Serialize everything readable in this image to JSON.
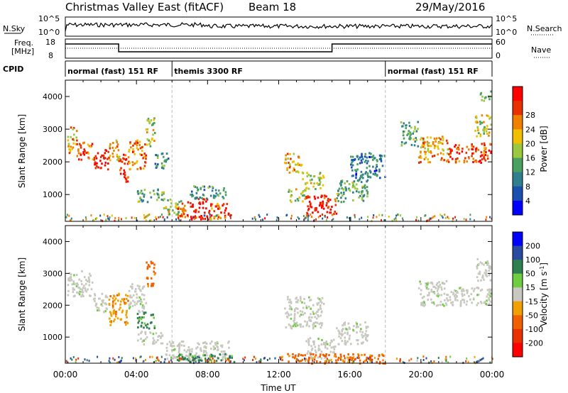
{
  "header": {
    "title": "Christmas Valley East (fitACF)",
    "beam": "Beam 18",
    "date": "29/May/2016"
  },
  "top_panels": {
    "nsky_label": "N.Sky",
    "nsky_ticks": [
      "10^5",
      "10^0"
    ],
    "nsearch_label": "N.Search",
    "nsearch_ticks": [
      "10^5",
      "10^0"
    ],
    "freq_label_1": "Freq.",
    "freq_label_2": "[MHz]",
    "freq_ticks": [
      "18",
      "8"
    ],
    "nave_label": "Nave",
    "nave_ticks": [
      "60",
      "0"
    ],
    "cpid_label": "CPID",
    "cpid_segments": [
      {
        "label": "normal (fast) 151 RF",
        "start_hour": 0,
        "end_hour": 6
      },
      {
        "label": "themis 3300 RF",
        "start_hour": 6,
        "end_hour": 18
      },
      {
        "label": "normal (fast) 151 RF",
        "start_hour": 18,
        "end_hour": 24
      }
    ]
  },
  "chart_data": [
    {
      "type": "heatmap",
      "name": "power",
      "ylabel": "Slant Range [km]",
      "yticks": [
        1000,
        2000,
        3000,
        4000
      ],
      "ylim": [
        180,
        4500
      ],
      "xlim": [
        0,
        24
      ],
      "colorbar_label": "Power [dB]",
      "colorbar_ticks": [
        4,
        8,
        12,
        16,
        20,
        24,
        28
      ],
      "colors": [
        "#0000ff",
        "#1a4fb0",
        "#2f7f8f",
        "#4aa060",
        "#9cc840",
        "#f0c000",
        "#f08000",
        "#e83000",
        "#ff0000"
      ],
      "echo_regions": [
        {
          "t0": 0.1,
          "t1": 0.6,
          "r0": 2300,
          "r1": 3100,
          "power": 20
        },
        {
          "t0": 0.6,
          "t1": 1.5,
          "r0": 2100,
          "r1": 2700,
          "power": 24
        },
        {
          "t0": 1.5,
          "t1": 2.4,
          "r0": 1800,
          "r1": 2400,
          "power": 28
        },
        {
          "t0": 2.4,
          "t1": 3.0,
          "r0": 2000,
          "r1": 2700,
          "power": 20
        },
        {
          "t0": 3.0,
          "t1": 3.5,
          "r0": 1400,
          "r1": 2300,
          "power": 26
        },
        {
          "t0": 3.5,
          "t1": 4.5,
          "r0": 1800,
          "r1": 2700,
          "power": 22
        },
        {
          "t0": 4.5,
          "t1": 5.0,
          "r0": 2500,
          "r1": 3400,
          "power": 16
        },
        {
          "t0": 5.0,
          "t1": 5.8,
          "r0": 1800,
          "r1": 2300,
          "power": 10
        },
        {
          "t0": 4.0,
          "t1": 5.5,
          "r0": 800,
          "r1": 1200,
          "power": 12
        },
        {
          "t0": 5.5,
          "t1": 6.5,
          "r0": 400,
          "r1": 900,
          "power": 16
        },
        {
          "t0": 6.2,
          "t1": 7.0,
          "r0": 300,
          "r1": 800,
          "power": 24
        },
        {
          "t0": 7.0,
          "t1": 8.0,
          "r0": 250,
          "r1": 900,
          "power": 28
        },
        {
          "t0": 8.0,
          "t1": 9.2,
          "r0": 300,
          "r1": 800,
          "power": 24
        },
        {
          "t0": 7.0,
          "t1": 9.0,
          "r0": 900,
          "r1": 1300,
          "power": 10
        },
        {
          "t0": 12.3,
          "t1": 13.3,
          "r0": 1700,
          "r1": 2300,
          "power": 20
        },
        {
          "t0": 13.3,
          "t1": 14.5,
          "r0": 1200,
          "r1": 1700,
          "power": 16
        },
        {
          "t0": 12.5,
          "t1": 13.5,
          "r0": 800,
          "r1": 1200,
          "power": 16
        },
        {
          "t0": 13.5,
          "t1": 15.2,
          "r0": 350,
          "r1": 1000,
          "power": 26
        },
        {
          "t0": 15.2,
          "t1": 17.0,
          "r0": 800,
          "r1": 1500,
          "power": 12
        },
        {
          "t0": 16.0,
          "t1": 18.0,
          "r0": 1500,
          "r1": 2300,
          "power": 8
        },
        {
          "t0": 18.8,
          "t1": 19.8,
          "r0": 2500,
          "r1": 3300,
          "power": 12
        },
        {
          "t0": 19.8,
          "t1": 21.5,
          "r0": 2000,
          "r1": 2800,
          "power": 20
        },
        {
          "t0": 21.5,
          "t1": 23.9,
          "r0": 2000,
          "r1": 2600,
          "power": 24
        },
        {
          "t0": 23.0,
          "t1": 23.9,
          "r0": 2800,
          "r1": 3500,
          "power": 16
        },
        {
          "t0": 23.3,
          "t1": 23.9,
          "r0": 3900,
          "r1": 4200,
          "power": 12
        }
      ]
    },
    {
      "type": "heatmap",
      "name": "velocity",
      "ylabel": "Slant Range [km]",
      "yticks": [
        1000,
        2000,
        3000,
        4000
      ],
      "ylim": [
        180,
        4500
      ],
      "xlim": [
        0,
        24
      ],
      "xlabel": "Time UT",
      "xticks": [
        "00:00",
        "04:00",
        "08:00",
        "12:00",
        "16:00",
        "20:00",
        "00:00"
      ],
      "colorbar_label": "Velocity [m s^-1]",
      "colorbar_ticks": [
        200,
        100,
        50,
        15,
        -15,
        -50,
        -100,
        -200
      ],
      "colors": [
        "#0000ff",
        "#2a4aa0",
        "#2f8050",
        "#70cc40",
        "#c8c8c0",
        "#f0a000",
        "#f06000",
        "#e83000",
        "#ff0000"
      ],
      "echo_regions": [
        {
          "t0": 0.1,
          "t1": 1.5,
          "r0": 2300,
          "r1": 3100,
          "velocity": 0
        },
        {
          "t0": 1.5,
          "t1": 2.4,
          "r0": 1800,
          "r1": 2400,
          "velocity": 0
        },
        {
          "t0": 2.4,
          "t1": 3.5,
          "r0": 1400,
          "r1": 2400,
          "velocity": -40
        },
        {
          "t0": 3.5,
          "t1": 4.5,
          "r0": 1800,
          "r1": 2700,
          "velocity": 0
        },
        {
          "t0": 4.5,
          "t1": 5.0,
          "r0": 2600,
          "r1": 3400,
          "velocity": -60
        },
        {
          "t0": 4.0,
          "t1": 5.0,
          "r0": 1300,
          "r1": 1800,
          "velocity": 40
        },
        {
          "t0": 4.0,
          "t1": 5.5,
          "r0": 800,
          "r1": 1200,
          "velocity": 0
        },
        {
          "t0": 5.5,
          "t1": 9.2,
          "r0": 300,
          "r1": 900,
          "velocity": 0
        },
        {
          "t0": 6.2,
          "t1": 9.5,
          "r0": 250,
          "r1": 500,
          "velocity": 40
        },
        {
          "t0": 12.3,
          "t1": 14.5,
          "r0": 1300,
          "r1": 2300,
          "velocity": 0
        },
        {
          "t0": 13.5,
          "t1": 15.2,
          "r0": 350,
          "r1": 1000,
          "velocity": 0
        },
        {
          "t0": 15.2,
          "t1": 17.0,
          "r0": 800,
          "r1": 1500,
          "velocity": 0
        },
        {
          "t0": 12.0,
          "t1": 18.0,
          "r0": 200,
          "r1": 500,
          "velocity": -60
        },
        {
          "t0": 19.8,
          "t1": 21.5,
          "r0": 2000,
          "r1": 2800,
          "velocity": 0
        },
        {
          "t0": 21.5,
          "t1": 23.9,
          "r0": 2000,
          "r1": 2600,
          "velocity": 0
        },
        {
          "t0": 23.0,
          "t1": 23.9,
          "r0": 2800,
          "r1": 3500,
          "velocity": 0
        }
      ]
    }
  ]
}
